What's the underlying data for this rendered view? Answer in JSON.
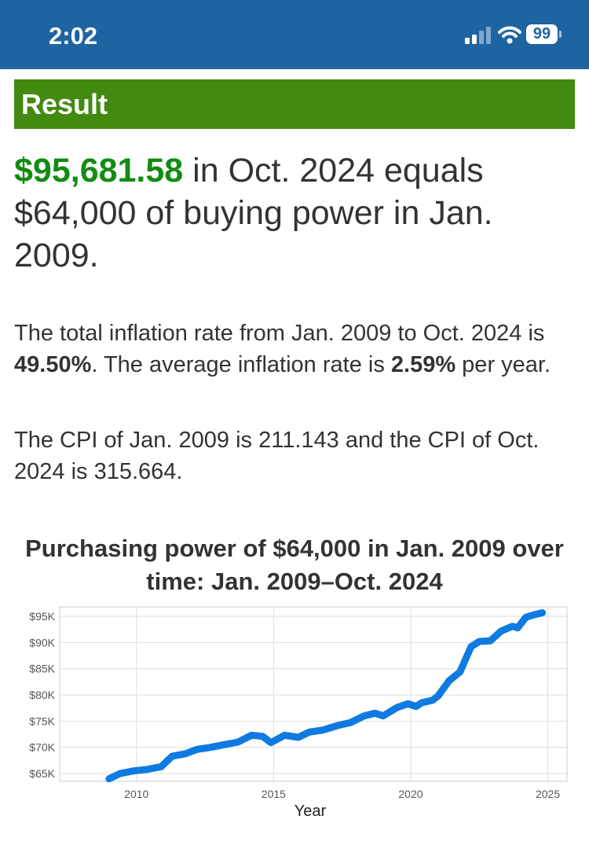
{
  "status_bar": {
    "time": "2:02",
    "battery": "99",
    "icons": [
      "signal-icon",
      "wifi-icon",
      "battery-icon"
    ],
    "background_color": "#1e64a0"
  },
  "result": {
    "header": "Result",
    "header_color": "#428a10",
    "amount": "$95,681.58",
    "headline_rest": " in Oct. 2024 equals $64,000 of buying power in Jan. 2009.",
    "amount_color": "#128c12"
  },
  "inflation": {
    "p1_a": "The total inflation rate from Jan. 2009 to Oct. 2024 is ",
    "total_rate": "49.50%",
    "p1_b": ". The average inflation rate is ",
    "avg_rate": "2.59%",
    "p1_c": " per year.",
    "cpi_text": "The CPI of Jan. 2009 is 211.143 and the CPI of Oct. 2024 is 315.664."
  },
  "chart_data": {
    "type": "line",
    "title": "Purchasing power of $64,000 in Jan. 2009 over time: Jan. 2009–Oct. 2024",
    "xlabel": "Year",
    "ylabel": "",
    "xlim": [
      2007.2,
      2025.7
    ],
    "ylim": [
      63500,
      96800
    ],
    "xticks": [
      2010,
      2015,
      2020,
      2025
    ],
    "xtick_labels": [
      "2010",
      "2015",
      "2020",
      "2025"
    ],
    "yticks": [
      65000,
      70000,
      75000,
      80000,
      85000,
      90000,
      95000
    ],
    "ytick_labels": [
      "$65K",
      "$70K",
      "$75K",
      "$80K",
      "$85K",
      "$90K",
      "$95K"
    ],
    "grid": true,
    "series": [
      {
        "color": "#0f7be0",
        "x": [
          2009.0,
          2009.4,
          2009.9,
          2010.4,
          2010.9,
          2011.3,
          2011.8,
          2012.2,
          2012.7,
          2013.2,
          2013.7,
          2014.2,
          2014.6,
          2014.9,
          2015.4,
          2015.9,
          2016.3,
          2016.8,
          2017.3,
          2017.8,
          2018.3,
          2018.7,
          2019.0,
          2019.5,
          2019.9,
          2020.2,
          2020.4,
          2020.8,
          2021.0,
          2021.4,
          2021.8,
          2022.2,
          2022.5,
          2022.9,
          2023.3,
          2023.7,
          2023.9,
          2024.2,
          2024.5,
          2024.8
        ],
        "y": [
          64000,
          65000,
          65500,
          65800,
          66300,
          68300,
          68800,
          69600,
          70000,
          70500,
          71000,
          72300,
          72100,
          70900,
          72300,
          71900,
          72900,
          73300,
          74100,
          74700,
          76000,
          76500,
          76000,
          77600,
          78300,
          77800,
          78500,
          79000,
          79800,
          82700,
          84400,
          89200,
          90200,
          90300,
          92200,
          93100,
          92800,
          94800,
          95300,
          95681.58
        ]
      }
    ]
  }
}
